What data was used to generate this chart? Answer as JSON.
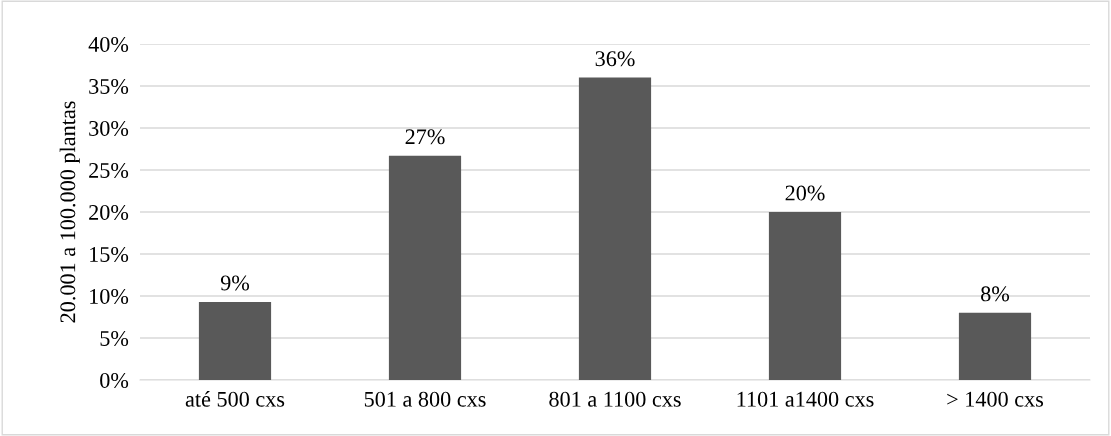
{
  "chart_data": {
    "type": "bar",
    "ylabel": "20.001 a 100.000 plantas",
    "categories": [
      "até 500 cxs",
      "501 a 800 cxs",
      "801 a 1100 cxs",
      "1101 a1400 cxs",
      "> 1400 cxs"
    ],
    "values": [
      9.3,
      26.7,
      36,
      20,
      8
    ],
    "value_labels": [
      "9%",
      "27%",
      "36%",
      "20%",
      "8%"
    ],
    "color": "#595959",
    "ylim": [
      0,
      40
    ],
    "yticks": [
      {
        "value": 0,
        "label": "0%"
      },
      {
        "value": 5,
        "label": "5%"
      },
      {
        "value": 10,
        "label": "10%"
      },
      {
        "value": 15,
        "label": "15%"
      },
      {
        "value": 20,
        "label": "20%"
      },
      {
        "value": 25,
        "label": "25%"
      },
      {
        "value": 30,
        "label": "30%"
      },
      {
        "value": 35,
        "label": "35%"
      },
      {
        "value": 40,
        "label": "40%"
      }
    ],
    "grid": "y",
    "legend": false
  }
}
